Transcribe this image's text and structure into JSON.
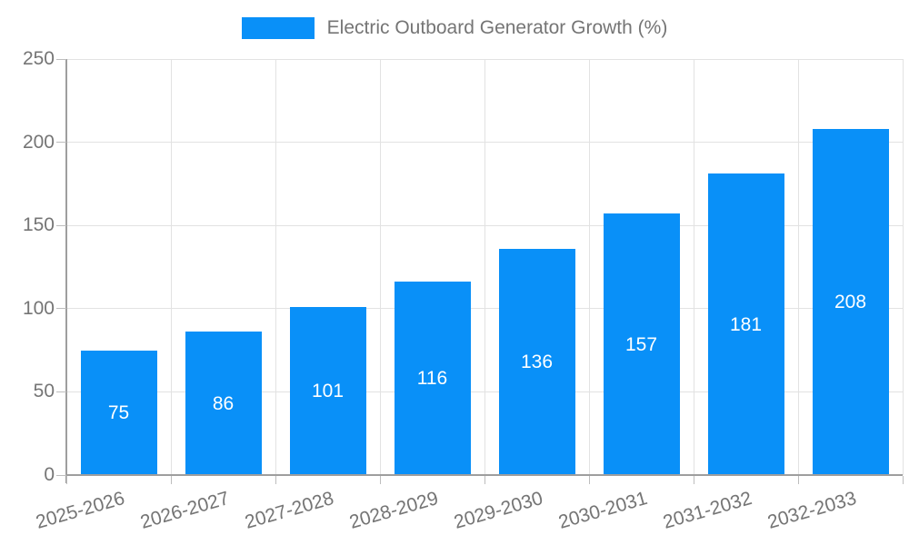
{
  "chart_data": {
    "type": "bar",
    "title": "Electric Outboard Generator Growth (%)",
    "categories": [
      "2025-2026",
      "2026-2027",
      "2027-2028",
      "2028-2029",
      "2029-2030",
      "2030-2031",
      "2031-2032",
      "2032-2033"
    ],
    "values": [
      75,
      86,
      101,
      116,
      136,
      157,
      181,
      208
    ],
    "xlabel": "",
    "ylabel": "",
    "ylim": [
      0,
      250
    ],
    "yticks": [
      0,
      50,
      100,
      150,
      200,
      250
    ],
    "grid": true,
    "legend": {
      "position": "top",
      "label": "Electric Outboard Generator Growth (%)"
    },
    "colors": {
      "bar": "#0990f8",
      "value_label": "#ffffff",
      "axis_text": "#757575",
      "grid_line": "#e2e2e2",
      "axis_line": "#9e9e9e",
      "tick_line": "#bdbdbd",
      "background": "#ffffff"
    }
  }
}
